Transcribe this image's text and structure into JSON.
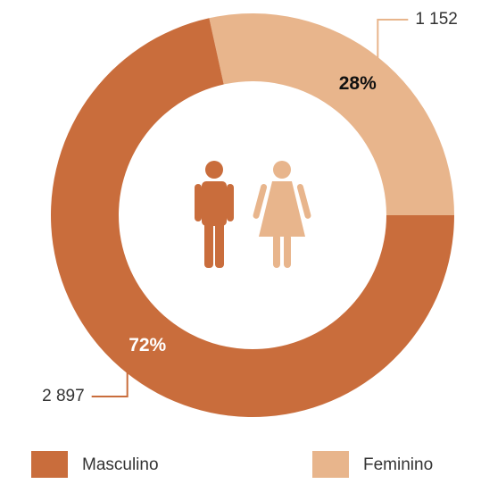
{
  "chart_data": {
    "type": "donut",
    "categories": [
      "Masculino",
      "Feminino"
    ],
    "values": [
      2897,
      1152
    ],
    "value_labels": [
      "2 897",
      "1 152"
    ],
    "percents": [
      72,
      28
    ],
    "percent_labels": [
      "72%",
      "28%"
    ],
    "colors": [
      "#c96d3c",
      "#e8b58c"
    ],
    "legend": "bottom"
  }
}
